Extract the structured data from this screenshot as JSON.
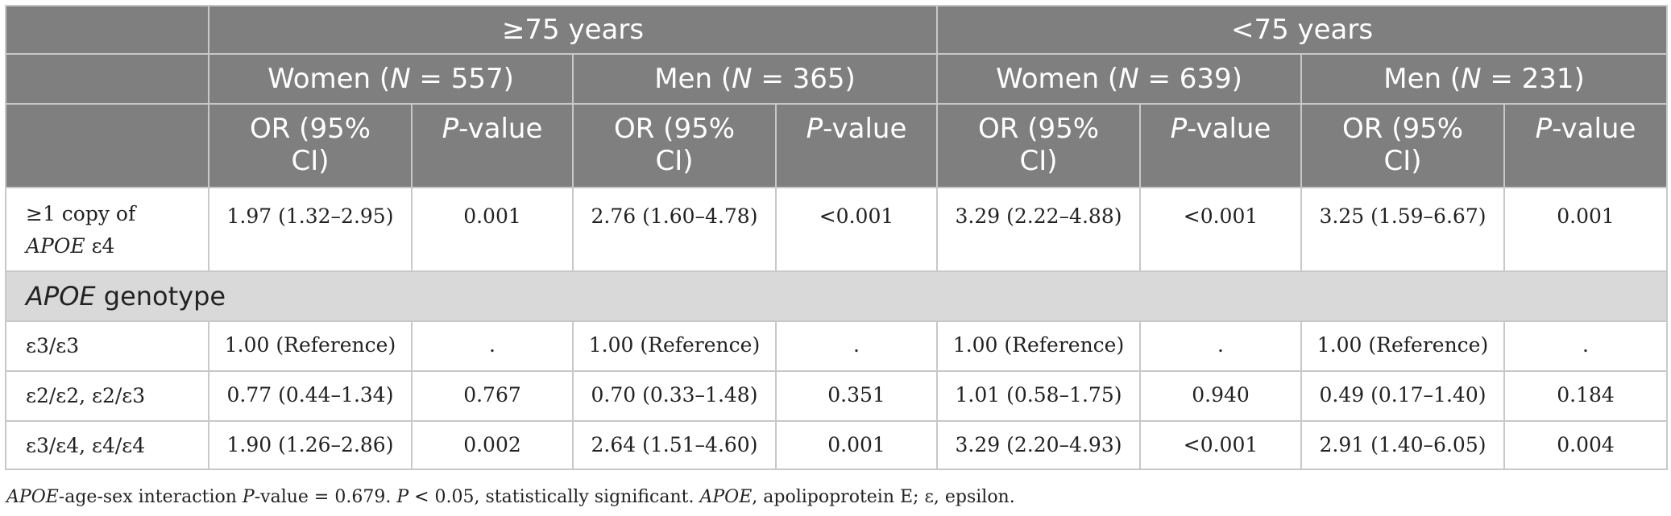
{
  "header": {
    "group1": "≥75 years",
    "group2": "<75 years",
    "w1_pre": "Women (",
    "w1_n": "N",
    "w1_post": " = 557)",
    "m1_pre": "Men (",
    "m1_n": "N",
    "m1_post": " = 365)",
    "w2_pre": "Women (",
    "w2_n": "N",
    "w2_post": " = 639)",
    "m2_pre": "Men (",
    "m2_n": "N",
    "m2_post": " = 231)",
    "or_line1": "OR (95%",
    "or_line2": "CI)",
    "p_italic": "P",
    "p_rest": "-value"
  },
  "rows": {
    "copy": {
      "label_line1": "≥1 copy of",
      "label_italic": "APOE",
      "label_rest": " ε4",
      "cells": [
        "1.97 (1.32–2.95)",
        "0.001",
        "2.76 (1.60–4.78)",
        "<0.001",
        "3.29 (2.22–4.88)",
        "<0.001",
        "3.25 (1.59–6.67)",
        "0.001"
      ]
    },
    "section_italic": "APOE",
    "section_rest": " genotype",
    "e33": {
      "label": "ε3/ε3",
      "cells": [
        "1.00 (Reference)",
        ".",
        "1.00 (Reference)",
        ".",
        "1.00 (Reference)",
        ".",
        "1.00 (Reference)",
        "."
      ]
    },
    "e22": {
      "label": "ε2/ε2, ε2/ε3",
      "cells": [
        "0.77 (0.44–1.34)",
        "0.767",
        "0.70 (0.33–1.48)",
        "0.351",
        "1.01 (0.58–1.75)",
        "0.940",
        "0.49 (0.17–1.40)",
        "0.184"
      ]
    },
    "e34": {
      "label": "ε3/ε4, ε4/ε4",
      "cells": [
        "1.90 (1.26–2.86)",
        "0.002",
        "2.64 (1.51–4.60)",
        "0.001",
        "3.29 (2.20–4.93)",
        "<0.001",
        "2.91 (1.40–6.05)",
        "0.004"
      ]
    }
  },
  "footnote": {
    "a_italic": "APOE",
    "b": "-age-sex interaction ",
    "c_italic": "P",
    "d": "-value = 0.679. ",
    "e_italic": "P",
    "f": " < 0.05, statistically significant. ",
    "g_italic": "APOE",
    "h": ", apolipoprotein E; ε, epsilon."
  }
}
